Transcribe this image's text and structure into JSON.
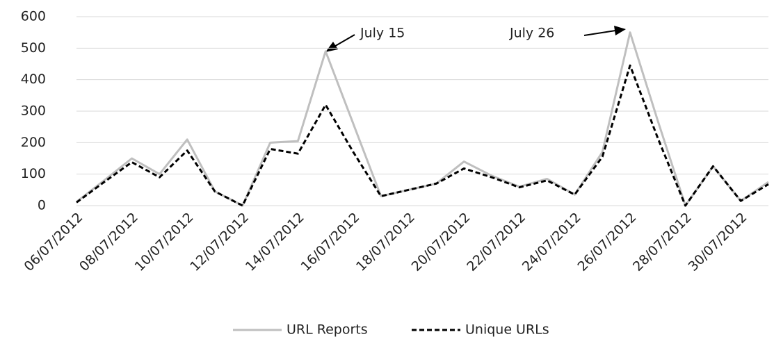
{
  "chart_data": {
    "type": "line",
    "categories": [
      "06/07/2012",
      null,
      "08/07/2012",
      null,
      "10/07/2012",
      null,
      "12/07/2012",
      null,
      "14/07/2012",
      null,
      "16/07/2012",
      null,
      "18/07/2012",
      null,
      "20/07/2012",
      null,
      "22/07/2012",
      null,
      "24/07/2012",
      null,
      "26/07/2012",
      null,
      "28/07/2012",
      null,
      "30/07/2012",
      null
    ],
    "series": [
      {
        "name": "URL Reports",
        "color": "#bfbfbf",
        "dashed": false,
        "values": [
          12,
          80,
          150,
          100,
          210,
          45,
          0,
          200,
          205,
          490,
          260,
          30,
          50,
          70,
          140,
          95,
          60,
          85,
          35,
          170,
          550,
          270,
          0,
          125,
          15,
          75
        ]
      },
      {
        "name": "Unique URLs",
        "color": "#000000",
        "dashed": true,
        "values": [
          10,
          75,
          138,
          90,
          175,
          45,
          0,
          180,
          165,
          320,
          170,
          30,
          50,
          70,
          118,
          90,
          58,
          80,
          35,
          155,
          445,
          215,
          0,
          125,
          15,
          68
        ]
      }
    ],
    "annotations": [
      "July 15",
      "July 26"
    ],
    "ylim": [
      0,
      600
    ],
    "yticks": [
      0,
      100,
      200,
      300,
      400,
      500,
      600
    ],
    "grid": true,
    "legend": "bottom"
  }
}
